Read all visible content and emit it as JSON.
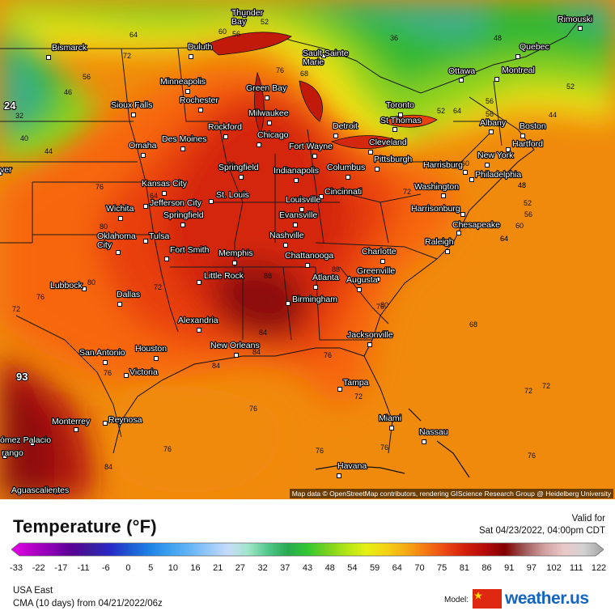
{
  "map": {
    "attribution": "Map data © OpenStreetMap contributors, rendering GIScience Research Group @ Heidelberg University",
    "colors": {
      "ocean_far": "#f08a0c",
      "warm_core": "#d4280e",
      "hot_core": "#8c0a0a",
      "orange": "#f76610",
      "yellow": "#f2e419",
      "light_green": "#8ed21e",
      "green": "#30b830",
      "teal": "#3cae8a",
      "mint": "#9ee2c2"
    },
    "cities": [
      {
        "name": "Thunder Bay",
        "lines": [
          "Thunder",
          "Bay"
        ]
      },
      {
        "name": "Sault Sainte Marie",
        "lines": [
          "Sault Sainte",
          "Marie"
        ]
      },
      {
        "name": "Bismarck",
        "lines": [
          "Bismarck"
        ]
      },
      {
        "name": "Duluth",
        "lines": [
          "Duluth"
        ]
      },
      {
        "name": "Ottawa",
        "lines": [
          "Ottawa"
        ]
      },
      {
        "name": "Montreal",
        "lines": [
          "Montreal"
        ]
      },
      {
        "name": "Quebec",
        "lines": [
          "Quebec"
        ]
      },
      {
        "name": "Rimouski",
        "lines": [
          "Rimouski"
        ]
      },
      {
        "name": "Minneapolis",
        "lines": [
          "Minneapolis"
        ]
      },
      {
        "name": "Green Bay",
        "lines": [
          "Green Bay"
        ]
      },
      {
        "name": "Rochester",
        "lines": [
          "Rochester"
        ]
      },
      {
        "name": "Milwaukee",
        "lines": [
          "Milwaukee"
        ]
      },
      {
        "name": "Toronto",
        "lines": [
          "Toronto"
        ]
      },
      {
        "name": "Sioux Falls",
        "lines": [
          "Sioux Falls"
        ]
      },
      {
        "name": "Rockford",
        "lines": [
          "Rockford"
        ]
      },
      {
        "name": "Chicago",
        "lines": [
          "Chicago"
        ]
      },
      {
        "name": "Detroit",
        "lines": [
          "Detroit"
        ]
      },
      {
        "name": "St Thomas",
        "lines": [
          "St Thomas"
        ]
      },
      {
        "name": "Albany",
        "lines": [
          "Albany"
        ]
      },
      {
        "name": "Boston",
        "lines": [
          "Boston"
        ]
      },
      {
        "name": "Des Moines",
        "lines": [
          "Des Moines"
        ]
      },
      {
        "name": "Cleveland",
        "lines": [
          "Cleveland"
        ]
      },
      {
        "name": "Hartford",
        "lines": [
          "Hartford"
        ]
      },
      {
        "name": "Omaha",
        "lines": [
          "Omaha"
        ]
      },
      {
        "name": "Fort Wayne",
        "lines": [
          "Fort Wayne"
        ]
      },
      {
        "name": "New York",
        "lines": [
          "New York"
        ]
      },
      {
        "name": "Pittsburgh",
        "lines": [
          "Pittsburgh"
        ]
      },
      {
        "name": "Harrisburg",
        "lines": [
          "Harrisburg"
        ]
      },
      {
        "name": "Philadelphia",
        "lines": [
          "Philadelphia"
        ]
      },
      {
        "name": "Springfield",
        "lines": [
          "Springfield"
        ]
      },
      {
        "name": "Indianapolis",
        "lines": [
          "Indianapolis"
        ]
      },
      {
        "name": "Columbus",
        "lines": [
          "Columbus"
        ]
      },
      {
        "name": "Kansas City",
        "lines": [
          "Kansas City"
        ]
      },
      {
        "name": "St. Louis",
        "lines": [
          "St. Louis"
        ]
      },
      {
        "name": "Cincinnati",
        "lines": [
          "Cincinnati"
        ]
      },
      {
        "name": "Washington",
        "lines": [
          "Washington"
        ]
      },
      {
        "name": "Jefferson City",
        "lines": [
          "Jefferson City"
        ]
      },
      {
        "name": "Louisville",
        "lines": [
          "Louisville"
        ]
      },
      {
        "name": "Wichita",
        "lines": [
          "Wichita"
        ]
      },
      {
        "name": "Harrisonburg",
        "lines": [
          "Harrisonburg"
        ]
      },
      {
        "name": "Evansville",
        "lines": [
          "Evansville"
        ]
      },
      {
        "name": "Springfield",
        "lines": [
          "Springfield"
        ]
      },
      {
        "name": "Chesapeake",
        "lines": [
          "Chesapeake"
        ]
      },
      {
        "name": "Nashville",
        "lines": [
          "Nashville"
        ]
      },
      {
        "name": "Tulsa",
        "lines": [
          "Tulsa"
        ]
      },
      {
        "name": "Oklahoma City",
        "lines": [
          "Oklahoma",
          "City"
        ]
      },
      {
        "name": "Raleigh",
        "lines": [
          "Raleigh"
        ]
      },
      {
        "name": "Fort Smith",
        "lines": [
          "Fort Smith"
        ]
      },
      {
        "name": "Memphis",
        "lines": [
          "Memphis"
        ]
      },
      {
        "name": "Chattanooga",
        "lines": [
          "Chattanooga"
        ]
      },
      {
        "name": "Charlotte",
        "lines": [
          "Charlotte"
        ]
      },
      {
        "name": "Greenville",
        "lines": [
          "Greenville"
        ]
      },
      {
        "name": "Little Rock",
        "lines": [
          "Little Rock"
        ]
      },
      {
        "name": "Atlanta",
        "lines": [
          "Atlanta"
        ]
      },
      {
        "name": "Lubbock",
        "lines": [
          "Lubbock"
        ]
      },
      {
        "name": "Augusta",
        "lines": [
          "Augusta"
        ]
      },
      {
        "name": "Birmingham",
        "lines": [
          "Birmingham"
        ]
      },
      {
        "name": "Dallas",
        "lines": [
          "Dallas"
        ]
      },
      {
        "name": "Alexandria",
        "lines": [
          "Alexandria"
        ]
      },
      {
        "name": "Jacksonville",
        "lines": [
          "Jacksonville"
        ]
      },
      {
        "name": "New Orleans",
        "lines": [
          "New Orleans"
        ]
      },
      {
        "name": "Houston",
        "lines": [
          "Houston"
        ]
      },
      {
        "name": "San Antonio",
        "lines": [
          "San Antonio"
        ]
      },
      {
        "name": "Victoria",
        "lines": [
          "Victoria"
        ]
      },
      {
        "name": "Tampa",
        "lines": [
          "Tampa"
        ]
      },
      {
        "name": "Reynosa",
        "lines": [
          "Reynosa"
        ]
      },
      {
        "name": "Monterrey",
        "lines": [
          "Monterrey"
        ]
      },
      {
        "name": "Miami",
        "lines": [
          "Miami"
        ]
      },
      {
        "name": "Nassau",
        "lines": [
          "Nassau"
        ]
      },
      {
        "name": "Gómez Palacio",
        "lines": [
          "ómez Palacio"
        ]
      },
      {
        "name": "Durango",
        "lines": [
          "rango"
        ]
      },
      {
        "name": "Havana",
        "lines": [
          "Havana"
        ]
      },
      {
        "name": "Aguascalientes",
        "lines": [
          "Aguascalientes"
        ]
      },
      {
        "name": "Denver",
        "lines": [
          "ver"
        ]
      }
    ],
    "contour_labels": [
      "64",
      "60",
      "56",
      "52",
      "36",
      "72",
      "56",
      "46",
      "24",
      "32",
      "76",
      "68",
      "48",
      "52",
      "40",
      "44",
      "56",
      "52",
      "56",
      "44",
      "48",
      "60",
      "80",
      "64",
      "72",
      "84",
      "60",
      "64",
      "76",
      "80",
      "48",
      "52",
      "56",
      "60",
      "64",
      "80",
      "88",
      "88",
      "72",
      "76",
      "72",
      "76",
      "84",
      "84",
      "92",
      "76",
      "84",
      "76",
      "80",
      "68",
      "72",
      "76",
      "76",
      "84",
      "76",
      "72",
      "76",
      "80",
      "64",
      "72",
      "76"
    ],
    "big_labels": [
      "24",
      "93"
    ]
  },
  "legend": {
    "title": "Temperature (°F)",
    "valid_label": "Valid for",
    "valid_time": "Sat 04/23/2022, 04:00pm CDT",
    "ticks": [
      "-33",
      "-22",
      "-17",
      "-11",
      "-6",
      "0",
      "5",
      "10",
      "16",
      "21",
      "27",
      "32",
      "37",
      "43",
      "48",
      "54",
      "59",
      "64",
      "70",
      "75",
      "81",
      "86",
      "91",
      "97",
      "102",
      "111",
      "122"
    ],
    "region": "USA East",
    "run": "CMA (10 days) from 04/21/2022/06z",
    "model_label": "Model:",
    "brand": "weather.us",
    "colorbar_stops": [
      "#e800e8",
      "#b400c8",
      "#8c00b4",
      "#5a0096",
      "#3c1c9a",
      "#2828c8",
      "#1e5ad2",
      "#1e82e6",
      "#3ca0f0",
      "#64b4f5",
      "#96c8fa",
      "#c8dcfa",
      "#a0e6c8",
      "#50c88c",
      "#28aa50",
      "#32c832",
      "#78d21e",
      "#b4e614",
      "#e6f014",
      "#f5d214",
      "#f5aa14",
      "#f57814",
      "#eb4614",
      "#d21e0a",
      "#b40a0a",
      "#820000",
      "#a05a5a",
      "#d2a0a0",
      "#ebc8c8",
      "#d2d2d2",
      "#a0a0a0"
    ]
  }
}
